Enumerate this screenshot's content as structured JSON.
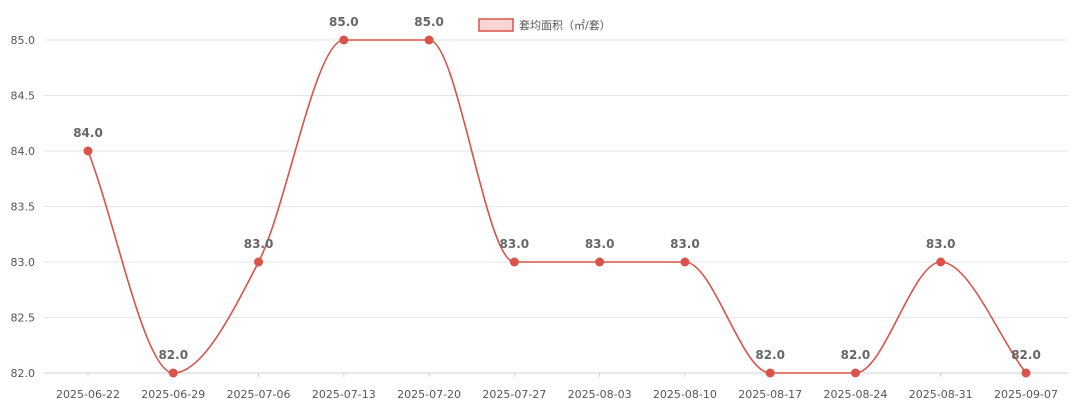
{
  "chart_data": {
    "type": "line",
    "x": [
      "2025-06-22",
      "2025-06-29",
      "2025-07-06",
      "2025-07-13",
      "2025-07-20",
      "2025-07-27",
      "2025-08-03",
      "2025-08-10",
      "2025-08-17",
      "2025-08-24",
      "2025-08-31",
      "2025-09-07"
    ],
    "series": [
      {
        "name": "套均面积（㎡/套）",
        "values": [
          84.0,
          82.0,
          83.0,
          85.0,
          85.0,
          83.0,
          83.0,
          83.0,
          82.0,
          82.0,
          83.0,
          82.0
        ],
        "data_labels": [
          "84.0",
          "82.0",
          "83.0",
          "85.0",
          "85.0",
          "83.0",
          "83.0",
          "83.0",
          "82.0",
          "82.0",
          "83.0",
          "82.0"
        ]
      }
    ],
    "title": "",
    "xlabel": "",
    "ylabel": "",
    "ylim": [
      82.0,
      85.0
    ],
    "yticks": [
      "82.0",
      "82.5",
      "83.0",
      "83.5",
      "84.0",
      "84.5",
      "85.0"
    ],
    "grid": true,
    "legend": "top-center",
    "colors": {
      "line": "#d9534a",
      "legend_fill": "#f7d6d4"
    }
  }
}
